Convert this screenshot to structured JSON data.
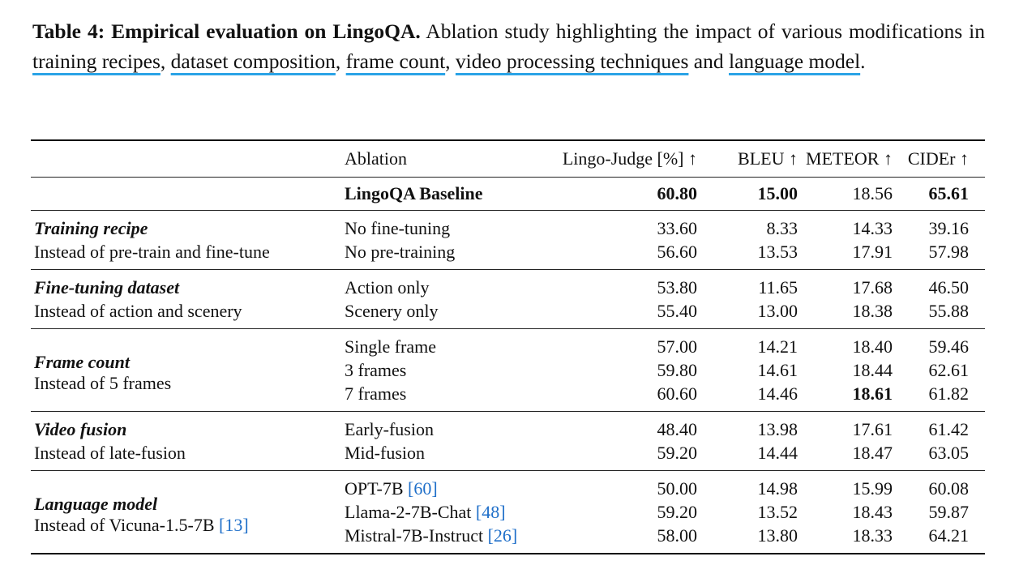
{
  "caption": {
    "title": "Table 4: Empirical evaluation on LingoQA.",
    "text_1": " Ablation study highlighting the impact of various modifications in ",
    "link_1": "training recipes",
    "sep_1": ", ",
    "link_2": "dataset composition",
    "sep_2": ", ",
    "link_3": "frame count",
    "sep_3": ", ",
    "link_4": "video processing techniques",
    "text_2": " and ",
    "link_5": "language model",
    "text_3": "."
  },
  "table": {
    "headers": {
      "ablation": "Ablation",
      "judge": "Lingo-Judge [%] ↑",
      "bleu": "BLEU ↑",
      "meteor": "METEOR ↑",
      "cider": "CIDEr ↑"
    },
    "baseline": {
      "label": "LingoQA Baseline",
      "judge": "60.80",
      "bleu": "15.00",
      "meteor": "18.56",
      "cider": "65.61"
    },
    "sections": [
      {
        "title": "Training recipe",
        "subtitle": "Instead of pre-train and fine-tune",
        "rows": [
          {
            "ablation": "No fine-tuning",
            "judge": "33.60",
            "bleu": "8.33",
            "meteor": "14.33",
            "cider": "39.16"
          },
          {
            "ablation": "No pre-training",
            "judge": "56.60",
            "bleu": "13.53",
            "meteor": "17.91",
            "cider": "57.98"
          }
        ]
      },
      {
        "title": "Fine-tuning dataset",
        "subtitle": "Instead of action and scenery",
        "rows": [
          {
            "ablation": "Action only",
            "judge": "53.80",
            "bleu": "11.65",
            "meteor": "17.68",
            "cider": "46.50"
          },
          {
            "ablation": "Scenery only",
            "judge": "55.40",
            "bleu": "13.00",
            "meteor": "18.38",
            "cider": "55.88"
          }
        ]
      },
      {
        "title": "Frame count",
        "subtitle": "Instead of 5 frames",
        "rows": [
          {
            "ablation": "Single frame",
            "judge": "57.00",
            "bleu": "14.21",
            "meteor": "18.40",
            "cider": "59.46"
          },
          {
            "ablation": "3 frames",
            "judge": "59.80",
            "bleu": "14.61",
            "meteor": "18.44",
            "cider": "62.61"
          },
          {
            "ablation": "7 frames",
            "judge": "60.60",
            "bleu": "14.46",
            "meteor": "18.61",
            "cider": "61.82"
          }
        ]
      },
      {
        "title": "Video fusion",
        "subtitle": "Instead of late-fusion",
        "rows": [
          {
            "ablation": "Early-fusion",
            "judge": "48.40",
            "bleu": "13.98",
            "meteor": "17.61",
            "cider": "61.42"
          },
          {
            "ablation": "Mid-fusion",
            "judge": "59.20",
            "bleu": "14.44",
            "meteor": "18.47",
            "cider": "63.05"
          }
        ]
      },
      {
        "title": "Language model",
        "subtitle": "Instead of Vicuna-1.5-7B ",
        "subtitle_cite": "[13]",
        "rows": [
          {
            "ablation": "OPT-7B ",
            "cite": "[60]",
            "judge": "50.00",
            "bleu": "14.98",
            "meteor": "15.99",
            "cider": "60.08"
          },
          {
            "ablation": "Llama-2-7B-Chat ",
            "cite": "[48]",
            "judge": "59.20",
            "bleu": "13.52",
            "meteor": "18.43",
            "cider": "59.87"
          },
          {
            "ablation": "Mistral-7B-Instruct ",
            "cite": "[26]",
            "judge": "58.00",
            "bleu": "13.80",
            "meteor": "18.33",
            "cider": "64.21"
          }
        ]
      }
    ]
  }
}
